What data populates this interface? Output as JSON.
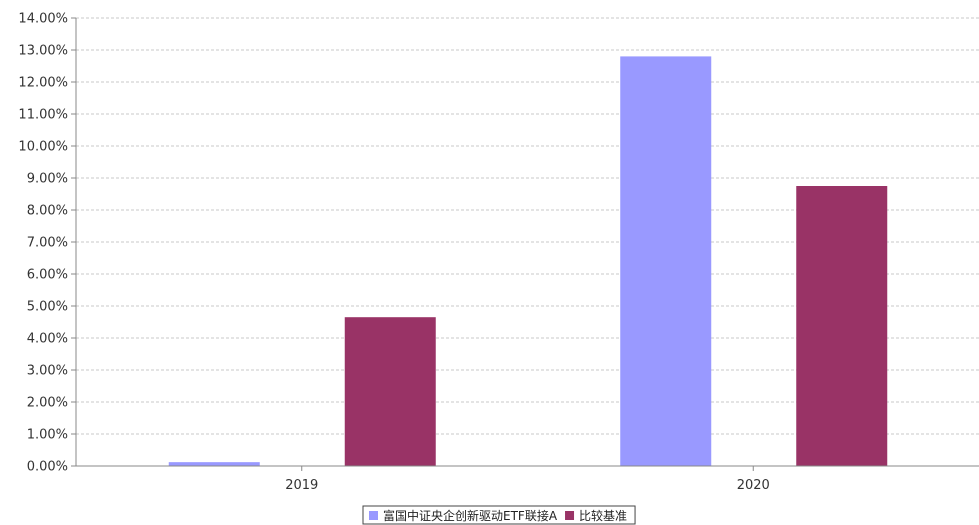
{
  "chart_data": {
    "type": "bar",
    "categories": [
      "2019",
      "2020"
    ],
    "series": [
      {
        "name": "富国中证央企创新驱动ETF联接A",
        "values": [
          0.12,
          12.8
        ],
        "color": "#9999ff"
      },
      {
        "name": "比较基准",
        "values": [
          4.65,
          8.75
        ],
        "color": "#993366"
      }
    ],
    "ylim": [
      0,
      14
    ],
    "yticks": [
      0,
      1,
      2,
      3,
      4,
      5,
      6,
      7,
      8,
      9,
      10,
      11,
      12,
      13,
      14
    ],
    "ytick_labels": [
      "0.00%",
      "1.00%",
      "2.00%",
      "3.00%",
      "4.00%",
      "5.00%",
      "6.00%",
      "7.00%",
      "8.00%",
      "9.00%",
      "10.00%",
      "11.00%",
      "12.00%",
      "13.00%",
      "14.00%"
    ],
    "grid": true,
    "legend_position": "bottom-center",
    "title": "",
    "xlabel": "",
    "ylabel": ""
  }
}
